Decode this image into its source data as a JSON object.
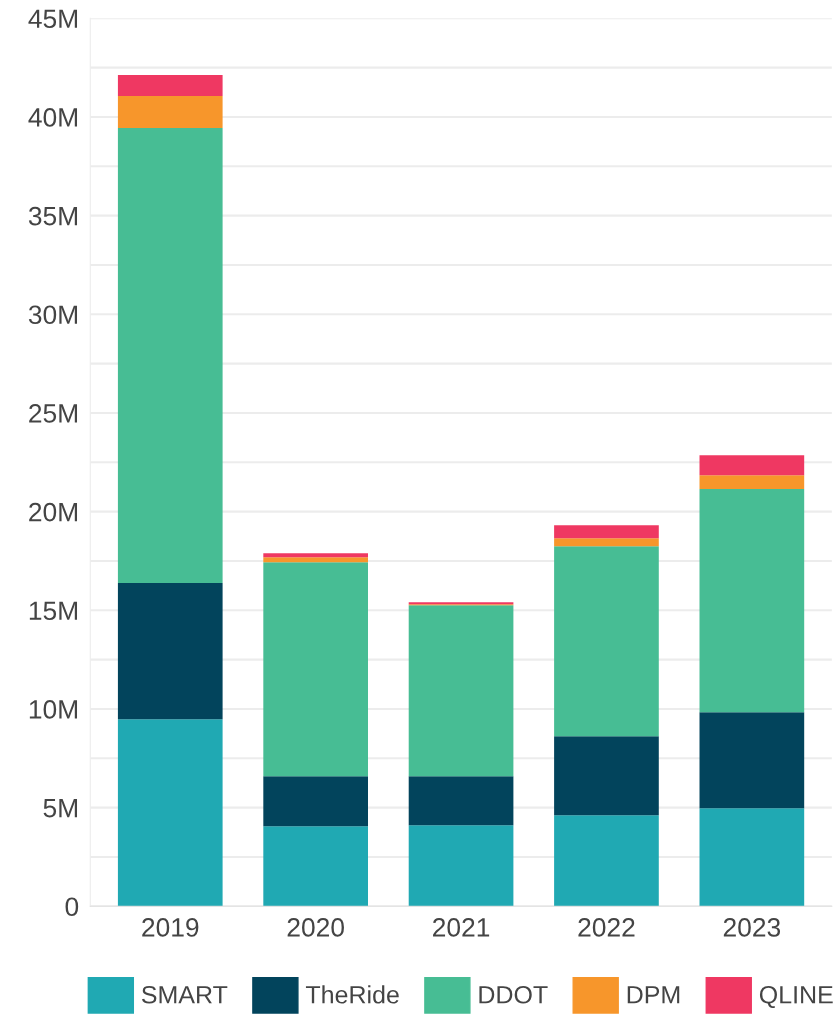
{
  "chart_data": {
    "type": "bar",
    "stacked": true,
    "categories": [
      "2019",
      "2020",
      "2021",
      "2022",
      "2023"
    ],
    "series": [
      {
        "name": "SMART",
        "color": "#20a9b3",
        "values": [
          9.48,
          4.05,
          4.1,
          4.61,
          4.97
        ]
      },
      {
        "name": "TheRide",
        "color": "#02445c",
        "values": [
          6.9,
          2.54,
          2.49,
          4.01,
          4.86
        ]
      },
      {
        "name": "DDOT",
        "color": "#47bd94",
        "values": [
          23.06,
          10.84,
          8.67,
          9.63,
          11.31
        ]
      },
      {
        "name": "DPM",
        "color": "#f7962b",
        "values": [
          1.62,
          0.26,
          0.05,
          0.4,
          0.7
        ]
      },
      {
        "name": "QLINE",
        "color": "#ef3862",
        "values": [
          1.07,
          0.2,
          0.1,
          0.66,
          1.02
        ]
      }
    ],
    "ylim": [
      0,
      45
    ],
    "yticks": [
      0,
      {
        "value": 2.5,
        "label": null
      },
      {
        "value": 5,
        "label": "5M"
      },
      {
        "value": 7.5,
        "label": null
      },
      {
        "value": 10,
        "label": "10M"
      },
      {
        "value": 12.5,
        "label": null
      },
      {
        "value": 15,
        "label": "15M"
      },
      {
        "value": 17.5,
        "label": null
      },
      {
        "value": 20,
        "label": "20M"
      },
      {
        "value": 22.5,
        "label": null
      },
      {
        "value": 25,
        "label": "25M"
      },
      {
        "value": 27.5,
        "label": null
      },
      {
        "value": 30,
        "label": "30M"
      },
      {
        "value": 32.5,
        "label": null
      },
      {
        "value": 35,
        "label": "35M"
      },
      {
        "value": 37.5,
        "label": null
      },
      {
        "value": 40,
        "label": "40M"
      },
      {
        "value": 42.5,
        "label": null
      },
      {
        "value": 45,
        "label": "45M"
      }
    ],
    "grid": "y",
    "legend": "bottom"
  }
}
